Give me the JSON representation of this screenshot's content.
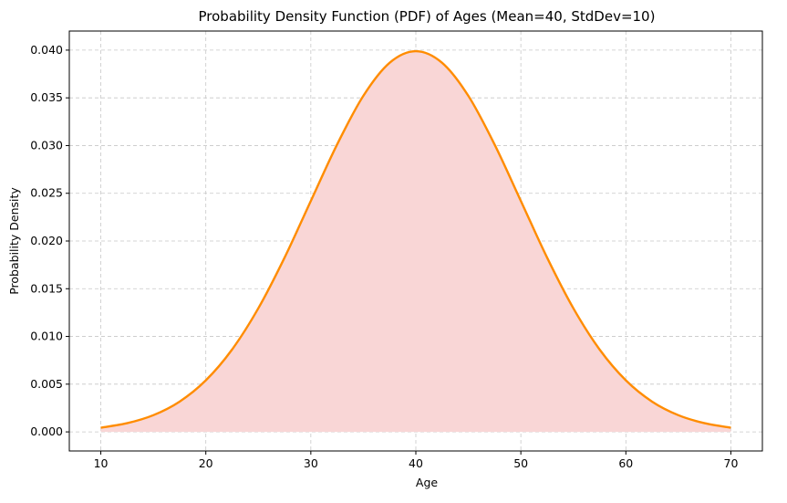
{
  "chart_data": {
    "type": "area",
    "title": "Probability Density Function (PDF) of Ages (Mean=40, StdDev=10)",
    "xlabel": "Age",
    "ylabel": "Probability Density",
    "xlim": [
      7,
      73
    ],
    "ylim": [
      -0.002,
      0.042
    ],
    "x_ticks": [
      10,
      20,
      30,
      40,
      50,
      60,
      70
    ],
    "y_ticks": [
      0.0,
      0.005,
      0.01,
      0.015,
      0.02,
      0.025,
      0.03,
      0.035,
      0.04
    ],
    "x_tick_labels": [
      "10",
      "20",
      "30",
      "40",
      "50",
      "60",
      "70"
    ],
    "y_tick_labels": [
      "0.000",
      "0.005",
      "0.010",
      "0.015",
      "0.020",
      "0.025",
      "0.030",
      "0.035",
      "0.040"
    ],
    "grid": true,
    "series": [
      {
        "x": [
          10,
          12.5,
          15,
          17.5,
          20,
          22.5,
          25,
          27.5,
          30,
          32.5,
          35,
          37.5,
          40,
          42.5,
          45,
          47.5,
          50,
          52.5,
          55,
          57.5,
          60,
          62.5,
          65,
          67.5,
          70
        ],
        "values": [
          0.00044,
          0.00091,
          0.00175,
          0.00317,
          0.0054,
          0.00863,
          0.01295,
          0.01826,
          0.0242,
          0.03011,
          0.03521,
          0.03867,
          0.03989,
          0.03867,
          0.03521,
          0.03011,
          0.0242,
          0.01826,
          0.01295,
          0.00863,
          0.0054,
          0.00317,
          0.00175,
          0.00091,
          0.00044
        ]
      }
    ],
    "colors": {
      "line": "#ff8c00",
      "fill": "#f9d6d6",
      "grid": "#c8c8c8",
      "axis": "#000000"
    }
  }
}
